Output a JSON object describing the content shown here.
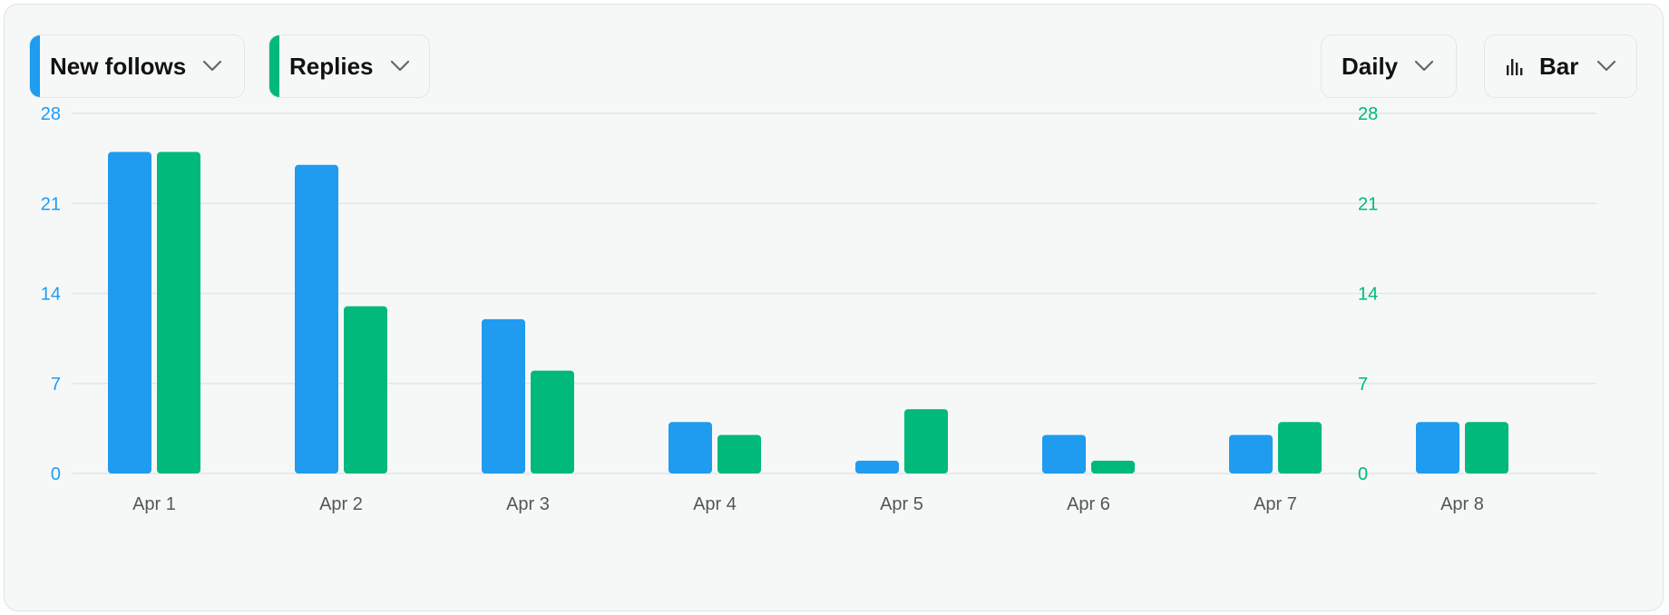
{
  "controls": {
    "series_a": {
      "label": "New follows",
      "color": "#1f9bf0",
      "icon": "chevron-down-icon"
    },
    "series_b": {
      "label": "Replies",
      "color": "#00b97a",
      "icon": "chevron-down-icon"
    },
    "interval": {
      "label": "Daily",
      "icon": "chevron-down-icon"
    },
    "chart_type": {
      "label": "Bar",
      "icon": "bar-chart-icon"
    }
  },
  "colors": {
    "axis_left": "#1f9bf0",
    "axis_right": "#00b97a",
    "grid": "#e2e6e6",
    "tick_x": "#555555"
  },
  "chart_data": {
    "type": "bar",
    "categories": [
      "Apr 1",
      "Apr 2",
      "Apr 3",
      "Apr 4",
      "Apr 5",
      "Apr 6",
      "Apr 7",
      "Apr 8"
    ],
    "series": [
      {
        "name": "New follows",
        "axis": "left",
        "values": [
          25,
          24,
          12,
          4,
          1,
          3,
          3,
          4
        ]
      },
      {
        "name": "Replies",
        "axis": "right",
        "values": [
          25,
          13,
          8,
          3,
          5,
          1,
          4,
          4
        ]
      }
    ],
    "ylim": [
      0,
      28
    ],
    "y_ticks": [
      0,
      7,
      14,
      21,
      28
    ],
    "grid": true
  }
}
